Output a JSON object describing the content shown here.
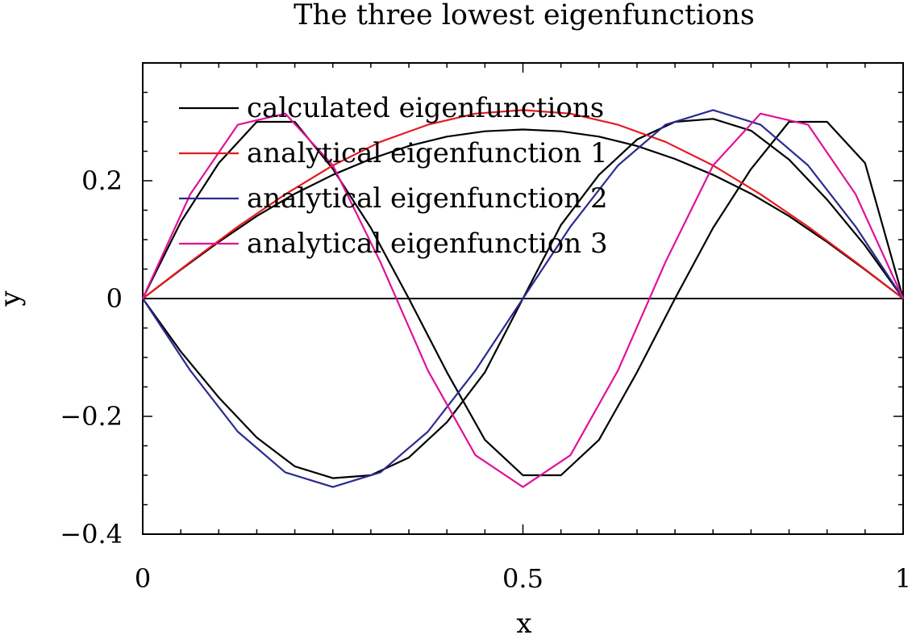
{
  "chart_data": {
    "type": "line",
    "title": "The three lowest eigenfunctions",
    "xlabel": "x",
    "ylabel": "y",
    "xlim": [
      0,
      1
    ],
    "ylim": [
      -0.4,
      0.4
    ],
    "xticks": [
      0,
      0.5,
      1
    ],
    "xtick_labels": [
      "0",
      "0.5",
      "1"
    ],
    "yticks": [
      -0.4,
      -0.2,
      0,
      0.2
    ],
    "ytick_labels": [
      "−0.4",
      "−0.2",
      "0",
      "0.2"
    ],
    "grid": false,
    "legend_position": "top-left",
    "legend": [
      {
        "label": "calculated eigenfunctions",
        "color": "#000000"
      },
      {
        "label": "analytical eigenfunction 1",
        "color": "#e8191f"
      },
      {
        "label": "analytical eigenfunction 2",
        "color": "#2b2b8f"
      },
      {
        "label": "analytical eigenfunction 3",
        "color": "#e0119a"
      }
    ],
    "series": [
      {
        "name": "calculated eigenfunctions",
        "color": "#000000",
        "x": [
          0,
          0.05,
          0.1,
          0.15,
          0.2,
          0.25,
          0.3,
          0.35,
          0.4,
          0.45,
          0.5,
          0.55,
          0.6,
          0.65,
          0.7,
          0.75,
          0.8,
          0.85,
          0.9,
          0.95,
          1
        ],
        "y": [
          0,
          0.049,
          0.096,
          0.14,
          0.178,
          0.21,
          0.237,
          0.259,
          0.275,
          0.284,
          0.287,
          0.284,
          0.275,
          0.259,
          0.237,
          0.21,
          0.178,
          0.14,
          0.096,
          0.049,
          0
        ]
      },
      {
        "name": "calculated eigenfunctions",
        "color": "#000000",
        "x": [
          0,
          0.05,
          0.1,
          0.15,
          0.2,
          0.25,
          0.3,
          0.35,
          0.4,
          0.45,
          0.5,
          0.55,
          0.6,
          0.65,
          0.7,
          0.75,
          0.8,
          0.85,
          0.9,
          0.95,
          1
        ],
        "y": [
          0,
          -0.09,
          -0.168,
          -0.236,
          -0.285,
          -0.305,
          -0.3,
          -0.27,
          -0.21,
          -0.125,
          0,
          0.125,
          0.21,
          0.27,
          0.3,
          0.305,
          0.285,
          0.236,
          0.168,
          0.09,
          0
        ]
      },
      {
        "name": "calculated eigenfunctions",
        "color": "#000000",
        "x": [
          0,
          0.05,
          0.1,
          0.15,
          0.2,
          0.25,
          0.3,
          0.35,
          0.4,
          0.45,
          0.5,
          0.55,
          0.6,
          0.65,
          0.7,
          0.75,
          0.8,
          0.85,
          0.9,
          0.95,
          1
        ],
        "y": [
          0,
          0.13,
          0.23,
          0.3,
          0.3,
          0.22,
          0.12,
          0,
          -0.125,
          -0.24,
          -0.3,
          -0.3,
          -0.24,
          -0.125,
          0,
          0.12,
          0.22,
          0.3,
          0.3,
          0.23,
          0
        ]
      },
      {
        "name": "analytical eigenfunction 1",
        "color": "#e8191f",
        "x": [
          0,
          0.0625,
          0.125,
          0.1875,
          0.25,
          0.3125,
          0.375,
          0.4375,
          0.5,
          0.5625,
          0.625,
          0.6875,
          0.75,
          0.8125,
          0.875,
          0.9375,
          1
        ],
        "y": [
          0,
          0.062,
          0.122,
          0.177,
          0.226,
          0.266,
          0.295,
          0.314,
          0.32,
          0.314,
          0.295,
          0.266,
          0.226,
          0.177,
          0.122,
          0.062,
          0
        ]
      },
      {
        "name": "analytical eigenfunction 2",
        "color": "#2b2b8f",
        "x": [
          0,
          0.0625,
          0.125,
          0.1875,
          0.25,
          0.3125,
          0.375,
          0.4375,
          0.5,
          0.5625,
          0.625,
          0.6875,
          0.75,
          0.8125,
          0.875,
          0.9375,
          1
        ],
        "y": [
          0,
          -0.122,
          -0.226,
          -0.295,
          -0.32,
          -0.295,
          -0.226,
          -0.122,
          0,
          0.122,
          0.226,
          0.295,
          0.32,
          0.295,
          0.226,
          0.122,
          0
        ]
      },
      {
        "name": "analytical eigenfunction 3",
        "color": "#e0119a",
        "x": [
          0,
          0.0625,
          0.125,
          0.1875,
          0.25,
          0.3125,
          0.375,
          0.4375,
          0.5,
          0.5625,
          0.625,
          0.6875,
          0.75,
          0.8125,
          0.875,
          0.9375,
          1
        ],
        "y": [
          0,
          0.177,
          0.295,
          0.314,
          0.226,
          0.062,
          -0.122,
          -0.266,
          -0.32,
          -0.266,
          -0.122,
          0.062,
          0.226,
          0.314,
          0.295,
          0.177,
          0
        ]
      }
    ]
  }
}
